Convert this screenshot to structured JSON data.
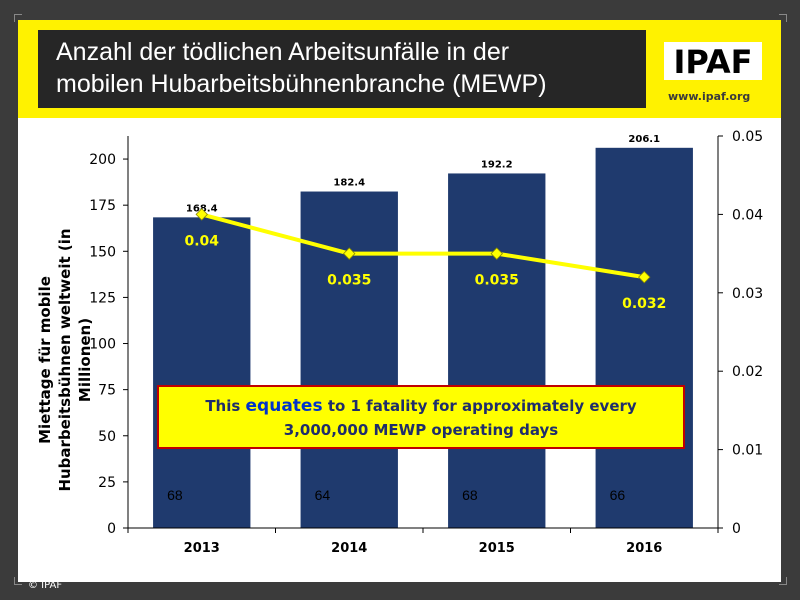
{
  "header": {
    "title_line1": "Anzahl der tödlichen Arbeitsunfälle in der",
    "title_line2": "mobilen Hubarbeitsbühnenbranche (MEWP)",
    "logo_text": "IPAF",
    "website": "www.ipaf.org"
  },
  "callout": {
    "part1": "This ",
    "emphasis": "equates",
    "part2": " to 1 fatality for approximately every",
    "line2": "3,000,000 MEWP operating days"
  },
  "footer": {
    "copyright": "© IPAF"
  },
  "colors": {
    "bar": "#1f3a6e",
    "line": "#ffff00",
    "marker": "#ffff00",
    "title_bg": "#262626",
    "banner": "#fff200",
    "callout_border": "#c00000"
  },
  "chart_data": {
    "type": "bar",
    "categories": [
      "2013",
      "2014",
      "2015",
      "2016"
    ],
    "ylabel": "Miettage für mobile Hubarbeitsbühnen weltweit (in Millionen)",
    "ylim": [
      0,
      212.5
    ],
    "yticks": [
      "0",
      "25",
      "50",
      "75",
      "100",
      "125",
      "150",
      "175",
      "200"
    ],
    "y2lim": [
      0,
      0.05
    ],
    "y2ticks": [
      "0",
      "0.01",
      "0.02",
      "0.03",
      "0.04",
      "0.05"
    ],
    "series": [
      {
        "type": "bar",
        "values": [
          168.4,
          182.4,
          192.2,
          206.1
        ],
        "labels": [
          "168.4",
          "182.4",
          "192.2",
          "206.1"
        ],
        "inner_labels": [
          "68",
          "64",
          "68",
          "66"
        ]
      },
      {
        "type": "line",
        "axis": "secondary",
        "values": [
          0.04,
          0.035,
          0.035,
          0.032
        ],
        "labels": [
          "0.04",
          "0.035",
          "0.035",
          "0.032"
        ]
      }
    ]
  }
}
